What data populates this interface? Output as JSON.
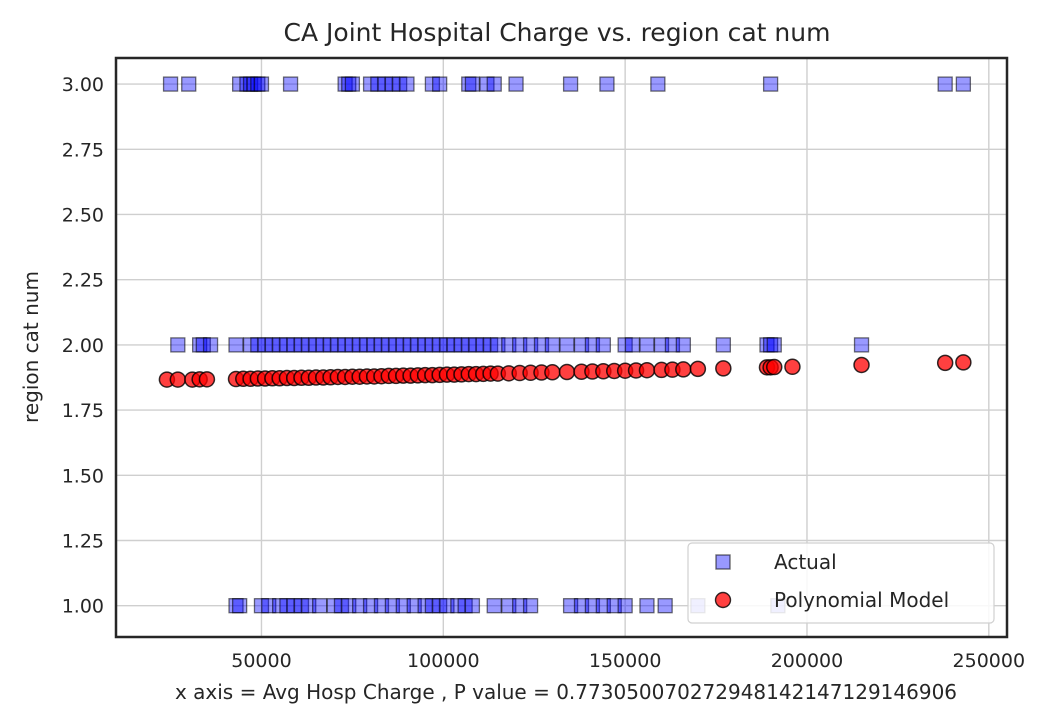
{
  "chart_data": {
    "type": "scatter",
    "title": "CA Joint Hospital Charge vs. region cat num",
    "xlabel": "x axis = Avg Hosp Charge , P value = 0.7730500702729481421471291469​06",
    "ylabel": "region cat num",
    "xlim": [
      10000,
      255000
    ],
    "ylim": [
      0.88,
      3.1
    ],
    "xticks": [
      50000,
      100000,
      150000,
      200000,
      250000
    ],
    "xtick_labels": [
      "50000",
      "100000",
      "150000",
      "200000",
      "250000"
    ],
    "yticks": [
      1.0,
      1.25,
      1.5,
      1.75,
      2.0,
      2.25,
      2.5,
      2.75,
      3.0
    ],
    "ytick_labels": [
      "1.00",
      "1.25",
      "1.50",
      "1.75",
      "2.00",
      "2.25",
      "2.50",
      "2.75",
      "3.00"
    ],
    "grid": true,
    "legend_placement": "lower-right",
    "series": [
      {
        "name": "Actual",
        "marker": "square",
        "color": "#0000ff",
        "edge_color": "#000000",
        "alpha": 0.4,
        "points": [
          [
            25000,
            3
          ],
          [
            30000,
            3
          ],
          [
            44000,
            3
          ],
          [
            46000,
            3
          ],
          [
            47000,
            3
          ],
          [
            48000,
            3
          ],
          [
            49000,
            3
          ],
          [
            50000,
            3
          ],
          [
            58000,
            3
          ],
          [
            73000,
            3
          ],
          [
            74000,
            3
          ],
          [
            75000,
            3
          ],
          [
            80000,
            3
          ],
          [
            82000,
            3
          ],
          [
            84000,
            3
          ],
          [
            86000,
            3
          ],
          [
            88000,
            3
          ],
          [
            90000,
            3
          ],
          [
            97000,
            3
          ],
          [
            99000,
            3
          ],
          [
            107000,
            3
          ],
          [
            108000,
            3
          ],
          [
            112000,
            3
          ],
          [
            114000,
            3
          ],
          [
            120000,
            3
          ],
          [
            135000,
            3
          ],
          [
            145000,
            3
          ],
          [
            159000,
            3
          ],
          [
            190000,
            3
          ],
          [
            238000,
            3
          ],
          [
            243000,
            3
          ],
          [
            27000,
            2
          ],
          [
            33000,
            2
          ],
          [
            34000,
            2
          ],
          [
            36000,
            2
          ],
          [
            43000,
            2
          ],
          [
            47000,
            2
          ],
          [
            49000,
            2
          ],
          [
            51000,
            2
          ],
          [
            53000,
            2
          ],
          [
            55000,
            2
          ],
          [
            57000,
            2
          ],
          [
            59000,
            2
          ],
          [
            61000,
            2
          ],
          [
            63000,
            2
          ],
          [
            65000,
            2
          ],
          [
            67000,
            2
          ],
          [
            69000,
            2
          ],
          [
            71000,
            2
          ],
          [
            73000,
            2
          ],
          [
            75000,
            2
          ],
          [
            77000,
            2
          ],
          [
            79000,
            2
          ],
          [
            81000,
            2
          ],
          [
            83000,
            2
          ],
          [
            85000,
            2
          ],
          [
            87000,
            2
          ],
          [
            89000,
            2
          ],
          [
            91000,
            2
          ],
          [
            93000,
            2
          ],
          [
            95000,
            2
          ],
          [
            97000,
            2
          ],
          [
            99000,
            2
          ],
          [
            101000,
            2
          ],
          [
            103000,
            2
          ],
          [
            105000,
            2
          ],
          [
            107000,
            2
          ],
          [
            109000,
            2
          ],
          [
            111000,
            2
          ],
          [
            113000,
            2
          ],
          [
            115000,
            2
          ],
          [
            118000,
            2
          ],
          [
            121000,
            2
          ],
          [
            124000,
            2
          ],
          [
            127000,
            2
          ],
          [
            130000,
            2
          ],
          [
            134000,
            2
          ],
          [
            138000,
            2
          ],
          [
            141000,
            2
          ],
          [
            144000,
            2
          ],
          [
            150000,
            2
          ],
          [
            152000,
            2
          ],
          [
            156000,
            2
          ],
          [
            160000,
            2
          ],
          [
            163000,
            2
          ],
          [
            166000,
            2
          ],
          [
            177000,
            2
          ],
          [
            189000,
            2
          ],
          [
            190000,
            2
          ],
          [
            191000,
            2
          ],
          [
            215000,
            2
          ],
          [
            43000,
            1
          ],
          [
            44000,
            1
          ],
          [
            50000,
            1
          ],
          [
            52000,
            1
          ],
          [
            55000,
            1
          ],
          [
            57000,
            1
          ],
          [
            59000,
            1
          ],
          [
            61000,
            1
          ],
          [
            63000,
            1
          ],
          [
            66000,
            1
          ],
          [
            70000,
            1
          ],
          [
            72000,
            1
          ],
          [
            74000,
            1
          ],
          [
            77000,
            1
          ],
          [
            80000,
            1
          ],
          [
            83000,
            1
          ],
          [
            86000,
            1
          ],
          [
            89000,
            1
          ],
          [
            92000,
            1
          ],
          [
            95000,
            1
          ],
          [
            97000,
            1
          ],
          [
            99000,
            1
          ],
          [
            101000,
            1
          ],
          [
            104000,
            1
          ],
          [
            106000,
            1
          ],
          [
            108000,
            1
          ],
          [
            114000,
            1
          ],
          [
            118000,
            1
          ],
          [
            121000,
            1
          ],
          [
            124000,
            1
          ],
          [
            135000,
            1
          ],
          [
            138000,
            1
          ],
          [
            141000,
            1
          ],
          [
            144000,
            1
          ],
          [
            147000,
            1
          ],
          [
            150000,
            1
          ],
          [
            156000,
            1
          ],
          [
            161000,
            1
          ],
          [
            170000,
            1
          ],
          [
            192000,
            1
          ]
        ]
      },
      {
        "name": "Polynomial Model",
        "marker": "circle",
        "color": "#ff0000",
        "edge_color": "#000000",
        "alpha": 0.75,
        "points": [
          [
            24000,
            1.867
          ],
          [
            27000,
            1.867
          ],
          [
            31000,
            1.867
          ],
          [
            33000,
            1.868
          ],
          [
            35000,
            1.868
          ],
          [
            43000,
            1.869
          ],
          [
            45000,
            1.87
          ],
          [
            47000,
            1.87
          ],
          [
            49000,
            1.871
          ],
          [
            51000,
            1.871
          ],
          [
            53000,
            1.872
          ],
          [
            55000,
            1.872
          ],
          [
            57000,
            1.873
          ],
          [
            59000,
            1.873
          ],
          [
            61000,
            1.874
          ],
          [
            63000,
            1.874
          ],
          [
            65000,
            1.875
          ],
          [
            67000,
            1.875
          ],
          [
            69000,
            1.876
          ],
          [
            71000,
            1.877
          ],
          [
            73000,
            1.877
          ],
          [
            75000,
            1.878
          ],
          [
            77000,
            1.878
          ],
          [
            79000,
            1.879
          ],
          [
            81000,
            1.879
          ],
          [
            83000,
            1.88
          ],
          [
            85000,
            1.881
          ],
          [
            87000,
            1.881
          ],
          [
            89000,
            1.882
          ],
          [
            91000,
            1.882
          ],
          [
            93000,
            1.883
          ],
          [
            95000,
            1.884
          ],
          [
            97000,
            1.884
          ],
          [
            99000,
            1.885
          ],
          [
            101000,
            1.886
          ],
          [
            103000,
            1.886
          ],
          [
            105000,
            1.887
          ],
          [
            107000,
            1.888
          ],
          [
            109000,
            1.888
          ],
          [
            111000,
            1.889
          ],
          [
            113000,
            1.89
          ],
          [
            115000,
            1.89
          ],
          [
            118000,
            1.891
          ],
          [
            121000,
            1.892
          ],
          [
            124000,
            1.893
          ],
          [
            127000,
            1.894
          ],
          [
            130000,
            1.895
          ],
          [
            134000,
            1.896
          ],
          [
            138000,
            1.897
          ],
          [
            141000,
            1.898
          ],
          [
            144000,
            1.899
          ],
          [
            147000,
            1.9
          ],
          [
            150000,
            1.901
          ],
          [
            153000,
            1.902
          ],
          [
            156000,
            1.903
          ],
          [
            160000,
            1.904
          ],
          [
            163000,
            1.905
          ],
          [
            166000,
            1.906
          ],
          [
            170000,
            1.908
          ],
          [
            177000,
            1.91
          ],
          [
            189000,
            1.914
          ],
          [
            190000,
            1.914
          ],
          [
            191000,
            1.915
          ],
          [
            196000,
            1.916
          ],
          [
            215000,
            1.923
          ],
          [
            238000,
            1.931
          ],
          [
            243000,
            1.933
          ]
        ]
      }
    ]
  }
}
